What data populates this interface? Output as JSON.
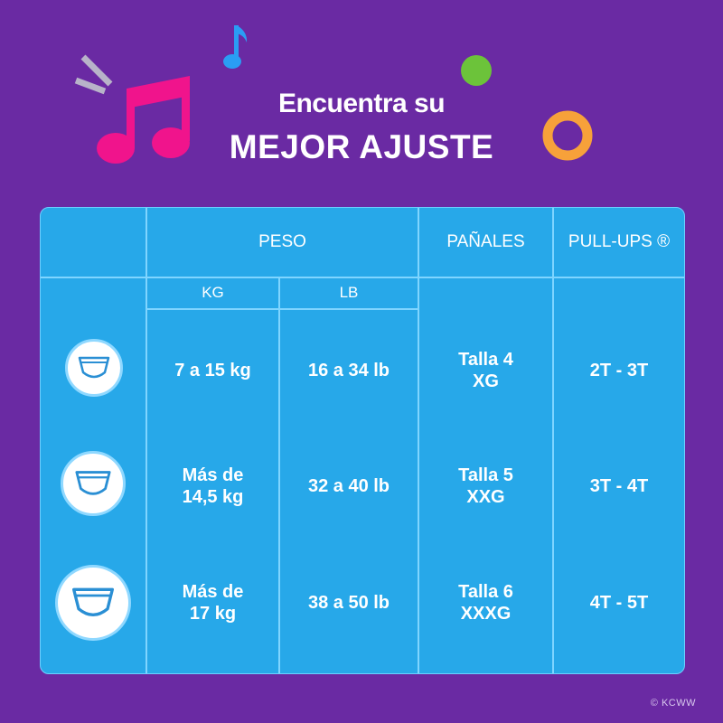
{
  "title": {
    "line1": "Encuentra su",
    "line2": "MEJOR AJUSTE"
  },
  "colors": {
    "background": "#6a2aa3",
    "table": "#27a8e9",
    "note_pink": "#f0148c",
    "note_blue": "#2a9df4",
    "dot_green": "#6cc33a",
    "ring_orange": "#f7a13a"
  },
  "headers": {
    "peso": "PESO",
    "panales": "PAÑALES",
    "pullups": "PULL-UPS ®",
    "kg": "KG",
    "lb": "LB"
  },
  "rows": [
    {
      "icon": "diaper-icon",
      "kg": [
        "7 a 15 kg"
      ],
      "lb": "16 a 34 lb",
      "panales": [
        "Talla 4",
        "XG"
      ],
      "pullups": "2T - 3T"
    },
    {
      "icon": "diaper-icon",
      "kg": [
        "Más de",
        "14,5 kg"
      ],
      "lb": "32 a 40 lb",
      "panales": [
        "Talla 5",
        "XXG"
      ],
      "pullups": "3T - 4T"
    },
    {
      "icon": "diaper-icon",
      "kg": [
        "Más de",
        "17 kg"
      ],
      "lb": "38 a 50 lb",
      "panales": [
        "Talla 6",
        "XXXG"
      ],
      "pullups": "4T - 5T"
    }
  ],
  "copyright": "© KCWW"
}
